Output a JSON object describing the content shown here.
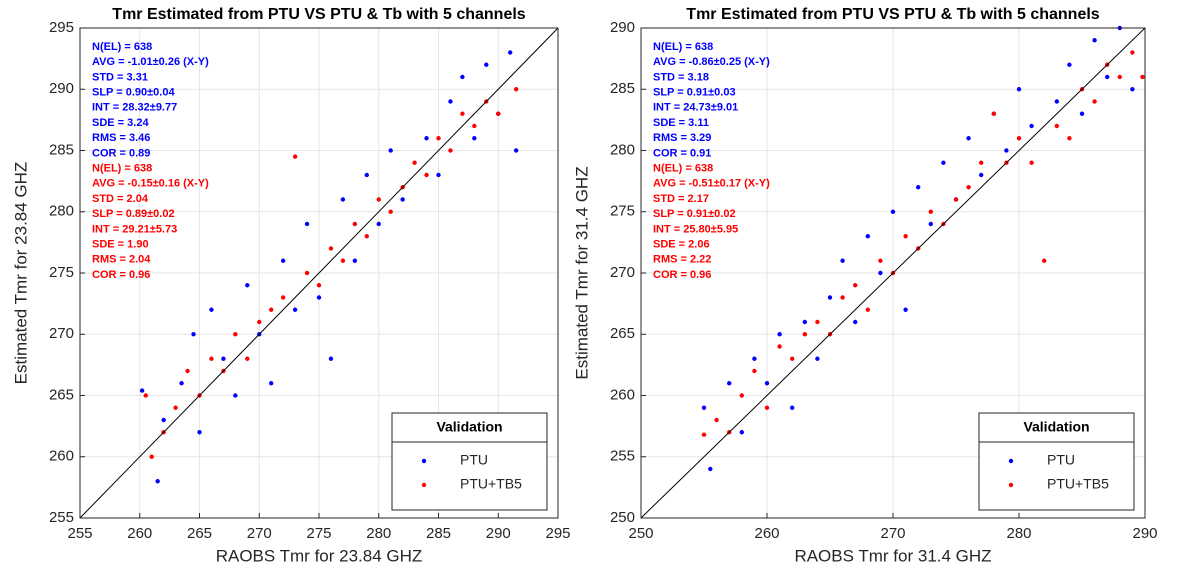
{
  "chart_data": [
    {
      "type": "scatter",
      "title": "Tmr Estimated from PTU VS PTU & Tb with 5 channels",
      "xlabel": "RAOBS Tmr for 23.84 GHZ",
      "ylabel": "Estimated Tmr for 23.84 GHZ",
      "xlim": [
        255,
        295
      ],
      "ylim": [
        255,
        295
      ],
      "xticks": [
        255,
        260,
        265,
        270,
        275,
        280,
        285,
        290,
        295
      ],
      "yticks": [
        255,
        260,
        265,
        270,
        275,
        280,
        285,
        290,
        295
      ],
      "grid": true,
      "diagonal": true,
      "legend": {
        "title": "Validation",
        "loc": "lower right"
      },
      "series": [
        {
          "name": "PTU",
          "color": "#0000ff",
          "x": [
            260.2,
            261.5,
            262,
            263.5,
            264.5,
            265,
            266,
            267,
            268,
            269,
            270,
            271,
            272,
            273,
            274,
            275,
            276,
            277,
            278,
            279,
            280,
            281,
            282,
            284,
            285,
            286,
            287,
            288,
            289,
            290,
            291,
            291.5
          ],
          "y": [
            265.4,
            258,
            263,
            266,
            270,
            262,
            272,
            268,
            265,
            274,
            270,
            266,
            276,
            272,
            279,
            273,
            268,
            281,
            276,
            283,
            279,
            285,
            281,
            286,
            283,
            289,
            291,
            286,
            292,
            288,
            293,
            285
          ]
        },
        {
          "name": "PTU+TB5",
          "color": "#ff0000",
          "x": [
            260.5,
            261,
            262,
            263,
            264,
            265,
            266,
            267,
            268,
            269,
            270,
            271,
            272,
            273,
            274,
            275,
            276,
            277,
            278,
            279,
            280,
            281,
            282,
            283,
            284,
            285,
            286,
            287,
            288,
            289,
            290,
            291.5
          ],
          "y": [
            265,
            260,
            262,
            264,
            267,
            265,
            268,
            267,
            270,
            268,
            271,
            272,
            273,
            284.5,
            275,
            274,
            277,
            276,
            279,
            278,
            281,
            280,
            282,
            284,
            283,
            286,
            285,
            288,
            287,
            289,
            288,
            290
          ]
        }
      ],
      "annotations": [
        {
          "text": "N(EL) = 638",
          "color": "#0000ff"
        },
        {
          "text": "AVG = -1.01±0.26 (X-Y)",
          "color": "#0000ff"
        },
        {
          "text": "STD = 3.31",
          "color": "#0000ff"
        },
        {
          "text": "SLP = 0.90±0.04",
          "color": "#0000ff"
        },
        {
          "text": "INT = 28.32±9.77",
          "color": "#0000ff"
        },
        {
          "text": "SDE = 3.24",
          "color": "#0000ff"
        },
        {
          "text": "RMS = 3.46",
          "color": "#0000ff"
        },
        {
          "text": "COR = 0.89",
          "color": "#0000ff"
        },
        {
          "text": "N(EL) = 638",
          "color": "#ff0000"
        },
        {
          "text": "AVG = -0.15±0.16 (X-Y)",
          "color": "#ff0000"
        },
        {
          "text": "STD = 2.04",
          "color": "#ff0000"
        },
        {
          "text": "SLP = 0.89±0.02",
          "color": "#ff0000"
        },
        {
          "text": "INT = 29.21±5.73",
          "color": "#ff0000"
        },
        {
          "text": "SDE = 1.90",
          "color": "#ff0000"
        },
        {
          "text": "RMS = 2.04",
          "color": "#ff0000"
        },
        {
          "text": "COR = 0.96",
          "color": "#ff0000"
        }
      ]
    },
    {
      "type": "scatter",
      "title": "Tmr Estimated from PTU VS PTU & Tb with 5 channels",
      "xlabel": "RAOBS Tmr for 31.4 GHZ",
      "ylabel": "Estimated Tmr for 31.4 GHZ",
      "xlim": [
        250,
        290
      ],
      "ylim": [
        250,
        290
      ],
      "xticks": [
        250,
        260,
        270,
        280,
        290
      ],
      "yticks": [
        250,
        255,
        260,
        265,
        270,
        275,
        280,
        285,
        290
      ],
      "grid": true,
      "diagonal": true,
      "legend": {
        "title": "Validation",
        "loc": "lower right"
      },
      "series": [
        {
          "name": "PTU",
          "color": "#0000ff",
          "x": [
            255.5,
            255,
            257,
            258,
            259,
            260,
            261,
            262,
            263,
            264,
            265,
            266,
            267,
            268,
            269,
            270,
            271,
            272,
            273,
            274,
            275,
            276,
            277,
            278,
            279,
            280,
            281,
            283,
            284,
            285,
            286,
            287,
            288,
            289
          ],
          "y": [
            254,
            259,
            261,
            257,
            263,
            261,
            265,
            259,
            266,
            263,
            268,
            271,
            266,
            273,
            270,
            275,
            267,
            277,
            274,
            279,
            276,
            281,
            278,
            283,
            280,
            285,
            282,
            284,
            287,
            283,
            289,
            286,
            290,
            285
          ]
        },
        {
          "name": "PTU+TB5",
          "color": "#ff0000",
          "x": [
            255,
            256,
            257,
            258,
            259,
            260,
            261,
            262,
            263,
            264,
            265,
            266,
            267,
            268,
            269,
            270,
            271,
            272,
            273,
            274,
            275,
            276,
            277,
            278,
            279,
            280,
            281,
            282,
            283,
            284,
            285,
            286,
            287,
            288,
            289,
            289.8
          ],
          "y": [
            256.8,
            258,
            257,
            260,
            262,
            259,
            264,
            263,
            265,
            266,
            265,
            268,
            269,
            267,
            271,
            270,
            273,
            272,
            275,
            274,
            276,
            277,
            279,
            283,
            279,
            281,
            279,
            271,
            282,
            281,
            285,
            284,
            287,
            286,
            288,
            286
          ]
        }
      ],
      "annotations": [
        {
          "text": "N(EL) = 638",
          "color": "#0000ff"
        },
        {
          "text": "AVG = -0.86±0.25 (X-Y)",
          "color": "#0000ff"
        },
        {
          "text": "STD = 3.18",
          "color": "#0000ff"
        },
        {
          "text": "SLP = 0.91±0.03",
          "color": "#0000ff"
        },
        {
          "text": "INT = 24.73±9.01",
          "color": "#0000ff"
        },
        {
          "text": "SDE = 3.11",
          "color": "#0000ff"
        },
        {
          "text": "RMS = 3.29",
          "color": "#0000ff"
        },
        {
          "text": "COR = 0.91",
          "color": "#0000ff"
        },
        {
          "text": "N(EL) = 638",
          "color": "#ff0000"
        },
        {
          "text": "AVG = -0.51±0.17 (X-Y)",
          "color": "#ff0000"
        },
        {
          "text": "STD = 2.17",
          "color": "#ff0000"
        },
        {
          "text": "SLP = 0.91±0.02",
          "color": "#ff0000"
        },
        {
          "text": "INT = 25.80±5.95",
          "color": "#ff0000"
        },
        {
          "text": "SDE = 2.06",
          "color": "#ff0000"
        },
        {
          "text": "RMS = 2.22",
          "color": "#ff0000"
        },
        {
          "text": "COR = 0.96",
          "color": "#ff0000"
        }
      ]
    }
  ]
}
